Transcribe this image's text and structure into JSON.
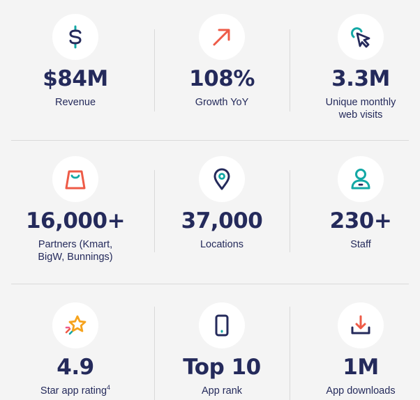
{
  "rows": [
    {
      "stats": [
        {
          "value": "$84M",
          "label": "Revenue",
          "icon": "dollar-icon"
        },
        {
          "value": "108%",
          "label": "Growth YoY",
          "icon": "arrow-up-right-icon"
        },
        {
          "value": "3.3M",
          "label_line1": "Unique monthly",
          "label_line2": "web visits",
          "icon": "cursor-click-icon"
        }
      ]
    },
    {
      "stats": [
        {
          "value": "16,000+",
          "label_line1": "Partners (Kmart,",
          "label_line2": "BigW, Bunnings)",
          "icon": "shopping-bag-icon"
        },
        {
          "value": "37,000",
          "label": "Locations",
          "icon": "location-pin-icon"
        },
        {
          "value": "230+",
          "label": "Staff",
          "icon": "person-icon"
        }
      ]
    },
    {
      "stats": [
        {
          "value": "4.9",
          "label": "Star app rating",
          "label_sup": "4",
          "icon": "star-icon"
        },
        {
          "value": "Top 10",
          "label": "App rank",
          "icon": "smartphone-icon"
        },
        {
          "value": "1M",
          "label": "App downloads",
          "icon": "download-icon"
        }
      ]
    }
  ],
  "colors": {
    "navy": "#242a5b",
    "coral": "#ee5b47",
    "teal": "#13a8a5",
    "orange": "#f6a31d",
    "pink": "#ee5b8c",
    "background": "#f4f4f4",
    "divider": "#d9d9d9"
  }
}
